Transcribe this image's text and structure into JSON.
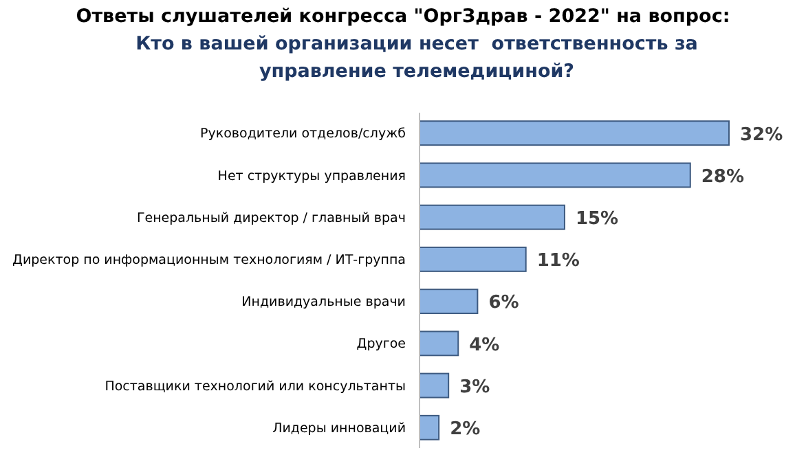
{
  "chart_data": {
    "type": "bar",
    "orientation": "horizontal",
    "title": "Ответы слушателей конгресса \"ОргЗдрав - 2022\" на вопрос:",
    "subtitle": "Кто в вашей организации несет  ответственность за управление телемедициной?",
    "categories": [
      "Руководители отделов/служб",
      "Нет структуры управления",
      "Генеральный директор / главный врач",
      "Директор по информационным технологиям / ИТ-группа",
      "Индивидуальные врачи",
      "Другое",
      "Поставщики технологий или консультанты",
      "Лидеры инноваций"
    ],
    "values": [
      32,
      28,
      15,
      11,
      6,
      4,
      3,
      2
    ],
    "value_labels": [
      "32%",
      "28%",
      "15%",
      "11%",
      "6%",
      "4%",
      "3%",
      "2%"
    ],
    "color": "#8db3e2"
  }
}
